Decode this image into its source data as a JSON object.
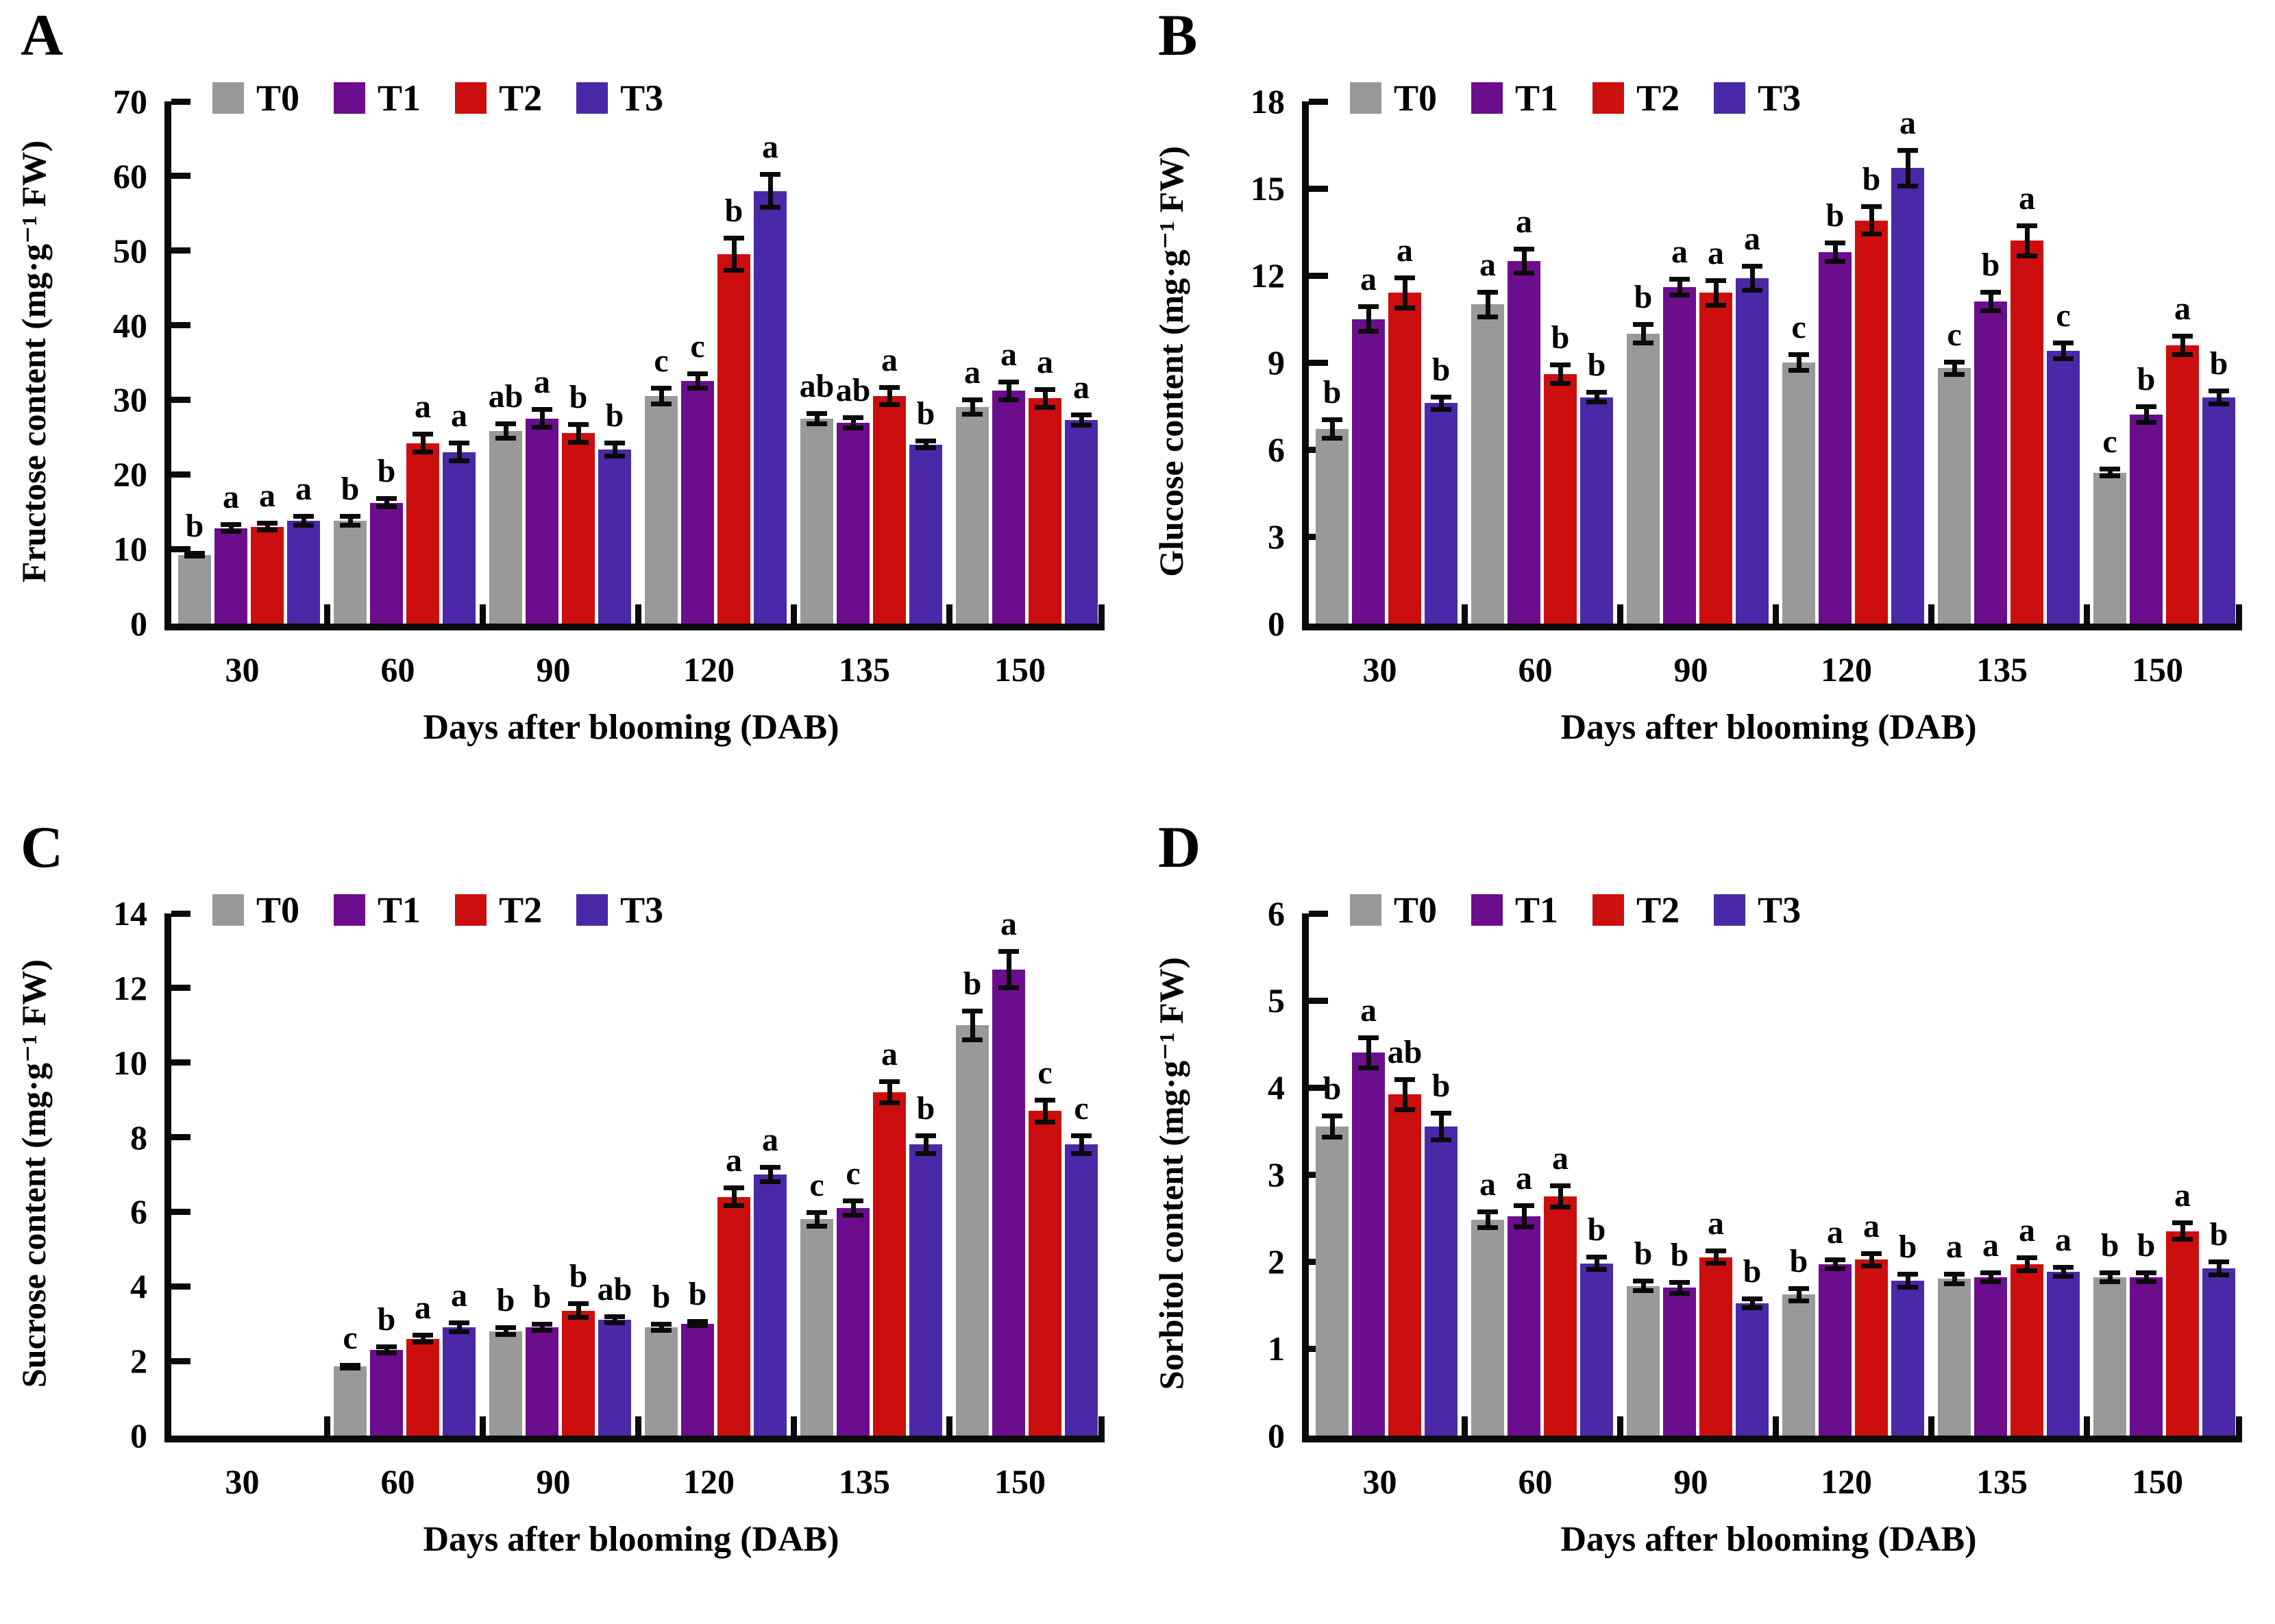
{
  "figure": {
    "background": "#ffffff",
    "x_axis_title": "Days after blooming (DAB)",
    "categories": [
      "30",
      "60",
      "90",
      "120",
      "135",
      "150"
    ]
  },
  "legend": {
    "items": [
      {
        "label": "T0",
        "color": "#999999"
      },
      {
        "label": "T1",
        "color": "#6B0D8C"
      },
      {
        "label": "T2",
        "color": "#CC0E0E"
      },
      {
        "label": "T3",
        "color": "#4B28A8"
      }
    ]
  },
  "chart_data": [
    {
      "type": "bar",
      "panel_label": "A",
      "title": "",
      "ylabel": "Fructose content (mg·g⁻¹ FW)",
      "xlabel": "Days after blooming (DAB)",
      "ylim": [
        0,
        70
      ],
      "ystep": 10,
      "grid": false,
      "legend_position": "top-left-inside",
      "categories": [
        "30",
        "60",
        "90",
        "120",
        "135",
        "150"
      ],
      "series_names": [
        "T0",
        "T1",
        "T2",
        "T3"
      ],
      "groups": [
        {
          "category": "30",
          "bars": [
            {
              "series": "T0",
              "value": 9.2,
              "err": 0.5,
              "letter": "b"
            },
            {
              "series": "T1",
              "value": 12.8,
              "err": 0.8,
              "letter": "a"
            },
            {
              "series": "T2",
              "value": 13.0,
              "err": 0.8,
              "letter": "a"
            },
            {
              "series": "T3",
              "value": 13.8,
              "err": 0.9,
              "letter": "a"
            }
          ]
        },
        {
          "category": "60",
          "bars": [
            {
              "series": "T0",
              "value": 13.8,
              "err": 0.9,
              "letter": "b"
            },
            {
              "series": "T1",
              "value": 16.2,
              "err": 0.9,
              "letter": "b"
            },
            {
              "series": "T2",
              "value": 24.2,
              "err": 1.5,
              "letter": "a"
            },
            {
              "series": "T3",
              "value": 23.0,
              "err": 1.5,
              "letter": "a"
            }
          ]
        },
        {
          "category": "90",
          "bars": [
            {
              "series": "T0",
              "value": 25.8,
              "err": 1.3,
              "letter": "ab"
            },
            {
              "series": "T1",
              "value": 27.5,
              "err": 1.5,
              "letter": "a"
            },
            {
              "series": "T2",
              "value": 25.5,
              "err": 1.5,
              "letter": "b"
            },
            {
              "series": "T3",
              "value": 23.3,
              "err": 1.2,
              "letter": "b"
            }
          ]
        },
        {
          "category": "120",
          "bars": [
            {
              "series": "T0",
              "value": 30.5,
              "err": 1.4,
              "letter": "c"
            },
            {
              "series": "T1",
              "value": 32.5,
              "err": 1.3,
              "letter": "c"
            },
            {
              "series": "T2",
              "value": 49.5,
              "err": 2.5,
              "letter": "b"
            },
            {
              "series": "T3",
              "value": 58.0,
              "err": 2.5,
              "letter": "a"
            }
          ]
        },
        {
          "category": "135",
          "bars": [
            {
              "series": "T0",
              "value": 27.5,
              "err": 1.0,
              "letter": "ab"
            },
            {
              "series": "T1",
              "value": 26.9,
              "err": 1.0,
              "letter": "ab"
            },
            {
              "series": "T2",
              "value": 30.5,
              "err": 1.5,
              "letter": "a"
            },
            {
              "series": "T3",
              "value": 24.0,
              "err": 0.8,
              "letter": "b"
            }
          ]
        },
        {
          "category": "150",
          "bars": [
            {
              "series": "T0",
              "value": 29.0,
              "err": 1.3,
              "letter": "a"
            },
            {
              "series": "T1",
              "value": 31.2,
              "err": 1.5,
              "letter": "a"
            },
            {
              "series": "T2",
              "value": 30.2,
              "err": 1.5,
              "letter": "a"
            },
            {
              "series": "T3",
              "value": 27.3,
              "err": 1.0,
              "letter": "a"
            }
          ]
        }
      ]
    },
    {
      "type": "bar",
      "panel_label": "B",
      "title": "",
      "ylabel": "Glucose content (mg·g⁻¹ FW)",
      "xlabel": "Days after blooming (DAB)",
      "ylim": [
        0,
        18
      ],
      "ystep": 3,
      "grid": false,
      "legend_position": "top-left-inside",
      "categories": [
        "30",
        "60",
        "90",
        "120",
        "135",
        "150"
      ],
      "series_names": [
        "T0",
        "T1",
        "T2",
        "T3"
      ],
      "groups": [
        {
          "category": "30",
          "bars": [
            {
              "series": "T0",
              "value": 6.7,
              "err": 0.4,
              "letter": "b"
            },
            {
              "series": "T1",
              "value": 10.5,
              "err": 0.5,
              "letter": "a"
            },
            {
              "series": "T2",
              "value": 11.4,
              "err": 0.6,
              "letter": "a"
            },
            {
              "series": "T3",
              "value": 7.6,
              "err": 0.3,
              "letter": "b"
            }
          ]
        },
        {
          "category": "60",
          "bars": [
            {
              "series": "T0",
              "value": 11.0,
              "err": 0.5,
              "letter": "a"
            },
            {
              "series": "T1",
              "value": 12.5,
              "err": 0.5,
              "letter": "a"
            },
            {
              "series": "T2",
              "value": 8.6,
              "err": 0.4,
              "letter": "b"
            },
            {
              "series": "T3",
              "value": 7.8,
              "err": 0.25,
              "letter": "b"
            }
          ]
        },
        {
          "category": "90",
          "bars": [
            {
              "series": "T0",
              "value": 10.0,
              "err": 0.4,
              "letter": "b"
            },
            {
              "series": "T1",
              "value": 11.6,
              "err": 0.35,
              "letter": "a"
            },
            {
              "series": "T2",
              "value": 11.4,
              "err": 0.5,
              "letter": "a"
            },
            {
              "series": "T3",
              "value": 11.9,
              "err": 0.5,
              "letter": "a"
            }
          ]
        },
        {
          "category": "120",
          "bars": [
            {
              "series": "T0",
              "value": 9.0,
              "err": 0.35,
              "letter": "c"
            },
            {
              "series": "T1",
              "value": 12.8,
              "err": 0.4,
              "letter": "b"
            },
            {
              "series": "T2",
              "value": 13.9,
              "err": 0.55,
              "letter": "b"
            },
            {
              "series": "T3",
              "value": 15.7,
              "err": 0.7,
              "letter": "a"
            }
          ]
        },
        {
          "category": "135",
          "bars": [
            {
              "series": "T0",
              "value": 8.8,
              "err": 0.3,
              "letter": "c"
            },
            {
              "series": "T1",
              "value": 11.1,
              "err": 0.4,
              "letter": "b"
            },
            {
              "series": "T2",
              "value": 13.2,
              "err": 0.6,
              "letter": "a"
            },
            {
              "series": "T3",
              "value": 9.4,
              "err": 0.35,
              "letter": "c"
            }
          ]
        },
        {
          "category": "150",
          "bars": [
            {
              "series": "T0",
              "value": 5.2,
              "err": 0.2,
              "letter": "c"
            },
            {
              "series": "T1",
              "value": 7.2,
              "err": 0.35,
              "letter": "b"
            },
            {
              "series": "T2",
              "value": 9.6,
              "err": 0.4,
              "letter": "a"
            },
            {
              "series": "T3",
              "value": 7.8,
              "err": 0.3,
              "letter": "b"
            }
          ]
        }
      ]
    },
    {
      "type": "bar",
      "panel_label": "C",
      "title": "",
      "ylabel": "Sucrose content (mg·g⁻¹ FW)",
      "xlabel": "Days after blooming (DAB)",
      "ylim": [
        0,
        14
      ],
      "ystep": 2,
      "grid": false,
      "legend_position": "top-left-inside",
      "categories": [
        "30",
        "60",
        "90",
        "120",
        "135",
        "150"
      ],
      "series_names": [
        "T0",
        "T1",
        "T2",
        "T3"
      ],
      "groups": [
        {
          "category": "30",
          "bars": [
            {
              "series": "T0",
              "value": null,
              "err": null,
              "letter": null
            },
            {
              "series": "T1",
              "value": null,
              "err": null,
              "letter": null
            },
            {
              "series": "T2",
              "value": null,
              "err": null,
              "letter": null
            },
            {
              "series": "T3",
              "value": null,
              "err": null,
              "letter": null
            }
          ]
        },
        {
          "category": "60",
          "bars": [
            {
              "series": "T0",
              "value": 1.85,
              "err": 0.1,
              "letter": "c"
            },
            {
              "series": "T1",
              "value": 2.3,
              "err": 0.15,
              "letter": "b"
            },
            {
              "series": "T2",
              "value": 2.6,
              "err": 0.15,
              "letter": "a"
            },
            {
              "series": "T3",
              "value": 2.9,
              "err": 0.18,
              "letter": "a"
            }
          ]
        },
        {
          "category": "90",
          "bars": [
            {
              "series": "T0",
              "value": 2.8,
              "err": 0.15,
              "letter": "b"
            },
            {
              "series": "T1",
              "value": 2.9,
              "err": 0.15,
              "letter": "b"
            },
            {
              "series": "T2",
              "value": 3.35,
              "err": 0.25,
              "letter": "b"
            },
            {
              "series": "T3",
              "value": 3.1,
              "err": 0.15,
              "letter": "ab"
            }
          ]
        },
        {
          "category": "120",
          "bars": [
            {
              "series": "T0",
              "value": 2.9,
              "err": 0.15,
              "letter": "b"
            },
            {
              "series": "T1",
              "value": 3.0,
              "err": 0.12,
              "letter": "b"
            },
            {
              "series": "T2",
              "value": 6.4,
              "err": 0.3,
              "letter": "a"
            },
            {
              "series": "T3",
              "value": 7.0,
              "err": 0.25,
              "letter": "a"
            }
          ]
        },
        {
          "category": "135",
          "bars": [
            {
              "series": "T0",
              "value": 5.8,
              "err": 0.25,
              "letter": "c"
            },
            {
              "series": "T1",
              "value": 6.1,
              "err": 0.25,
              "letter": "c"
            },
            {
              "series": "T2",
              "value": 9.2,
              "err": 0.35,
              "letter": "a"
            },
            {
              "series": "T3",
              "value": 7.8,
              "err": 0.3,
              "letter": "b"
            }
          ]
        },
        {
          "category": "150",
          "bars": [
            {
              "series": "T0",
              "value": 11.0,
              "err": 0.45,
              "letter": "b"
            },
            {
              "series": "T1",
              "value": 12.5,
              "err": 0.55,
              "letter": "a"
            },
            {
              "series": "T2",
              "value": 8.7,
              "err": 0.35,
              "letter": "c"
            },
            {
              "series": "T3",
              "value": 7.8,
              "err": 0.3,
              "letter": "c"
            }
          ]
        }
      ]
    },
    {
      "type": "bar",
      "panel_label": "D",
      "title": "",
      "ylabel": "Sorbitol content (mg·g⁻¹ FW)",
      "xlabel": "Days after blooming (DAB)",
      "ylim": [
        0,
        6
      ],
      "ystep": 1,
      "grid": false,
      "legend_position": "top-left-inside",
      "categories": [
        "30",
        "60",
        "90",
        "120",
        "135",
        "150"
      ],
      "series_names": [
        "T0",
        "T1",
        "T2",
        "T3"
      ],
      "groups": [
        {
          "category": "30",
          "bars": [
            {
              "series": "T0",
              "value": 3.55,
              "err": 0.15,
              "letter": "b"
            },
            {
              "series": "T1",
              "value": 4.4,
              "err": 0.2,
              "letter": "a"
            },
            {
              "series": "T2",
              "value": 3.92,
              "err": 0.2,
              "letter": "ab"
            },
            {
              "series": "T3",
              "value": 3.55,
              "err": 0.18,
              "letter": "b"
            }
          ]
        },
        {
          "category": "60",
          "bars": [
            {
              "series": "T0",
              "value": 2.48,
              "err": 0.12,
              "letter": "a"
            },
            {
              "series": "T1",
              "value": 2.52,
              "err": 0.15,
              "letter": "a"
            },
            {
              "series": "T2",
              "value": 2.75,
              "err": 0.15,
              "letter": "a"
            },
            {
              "series": "T3",
              "value": 1.98,
              "err": 0.1,
              "letter": "b"
            }
          ]
        },
        {
          "category": "90",
          "bars": [
            {
              "series": "T0",
              "value": 1.72,
              "err": 0.08,
              "letter": "b"
            },
            {
              "series": "T1",
              "value": 1.7,
              "err": 0.09,
              "letter": "b"
            },
            {
              "series": "T2",
              "value": 2.05,
              "err": 0.1,
              "letter": "a"
            },
            {
              "series": "T3",
              "value": 1.52,
              "err": 0.08,
              "letter": "b"
            }
          ]
        },
        {
          "category": "120",
          "bars": [
            {
              "series": "T0",
              "value": 1.62,
              "err": 0.1,
              "letter": "b"
            },
            {
              "series": "T1",
              "value": 1.97,
              "err": 0.08,
              "letter": "a"
            },
            {
              "series": "T2",
              "value": 2.02,
              "err": 0.1,
              "letter": "a"
            },
            {
              "series": "T3",
              "value": 1.78,
              "err": 0.1,
              "letter": "b"
            }
          ]
        },
        {
          "category": "135",
          "bars": [
            {
              "series": "T0",
              "value": 1.8,
              "err": 0.08,
              "letter": "a"
            },
            {
              "series": "T1",
              "value": 1.82,
              "err": 0.08,
              "letter": "a"
            },
            {
              "series": "T2",
              "value": 1.97,
              "err": 0.1,
              "letter": "a"
            },
            {
              "series": "T3",
              "value": 1.88,
              "err": 0.08,
              "letter": "a"
            }
          ]
        },
        {
          "category": "150",
          "bars": [
            {
              "series": "T0",
              "value": 1.82,
              "err": 0.08,
              "letter": "b"
            },
            {
              "series": "T1",
              "value": 1.82,
              "err": 0.08,
              "letter": "b"
            },
            {
              "series": "T2",
              "value": 2.35,
              "err": 0.12,
              "letter": "a"
            },
            {
              "series": "T3",
              "value": 1.92,
              "err": 0.1,
              "letter": "b"
            }
          ]
        }
      ]
    }
  ]
}
